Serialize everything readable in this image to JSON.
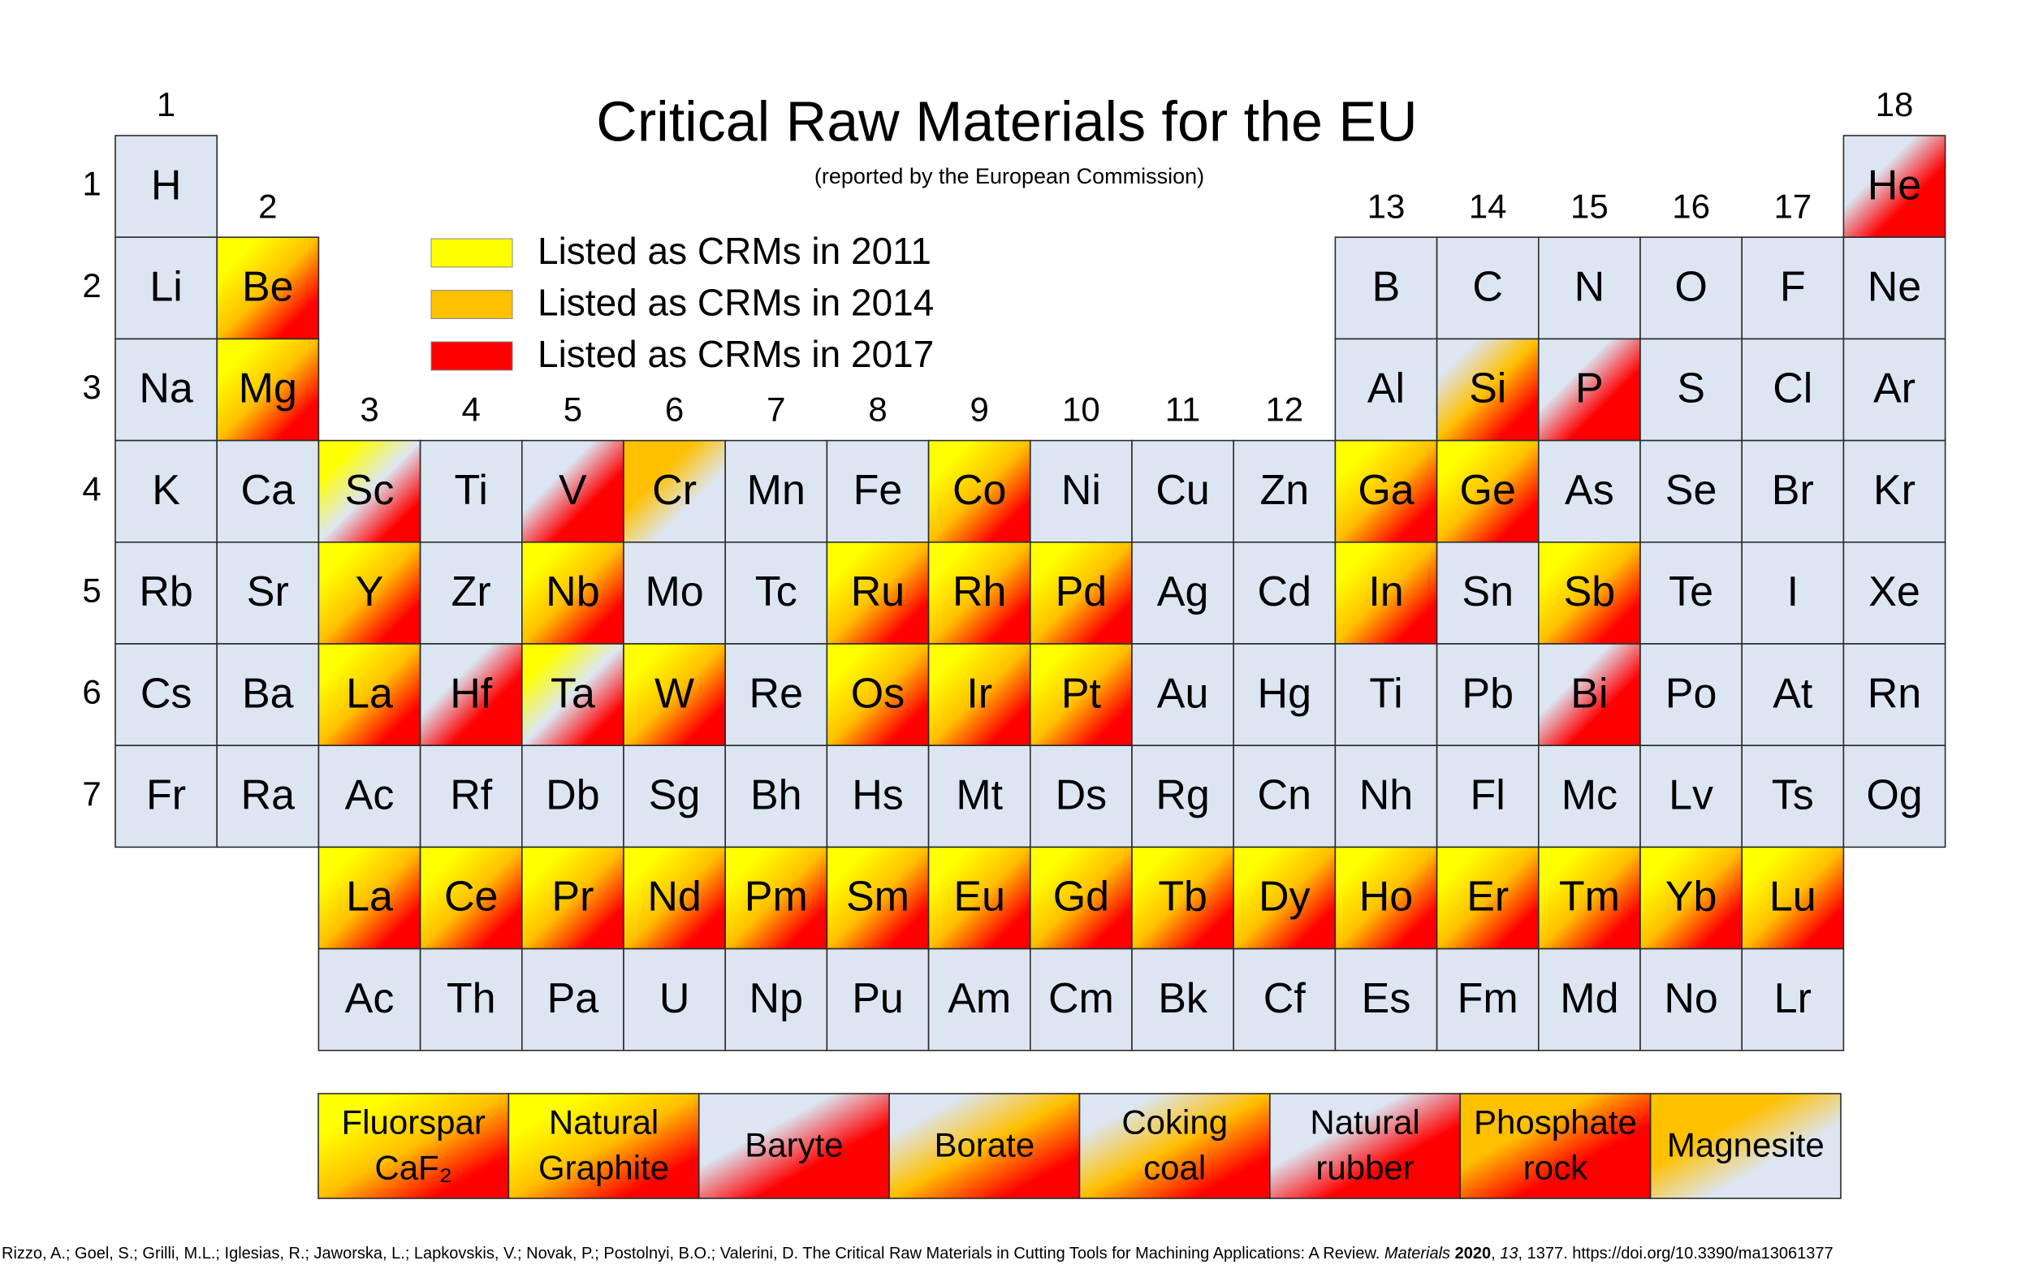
{
  "title": "Critical Raw Materials for the EU",
  "subtitle": "(reported by the European Commission)",
  "legend": [
    {
      "label": "Listed as CRMs in 2011",
      "color": "#ffff00"
    },
    {
      "label": "Listed as CRMs in 2014",
      "color": "#ffc000"
    },
    {
      "label": "Listed as CRMs in 2017",
      "color": "#ff0000"
    }
  ],
  "groups": [
    "1",
    "2",
    "3",
    "4",
    "5",
    "6",
    "7",
    "8",
    "9",
    "10",
    "11",
    "12",
    "13",
    "14",
    "15",
    "16",
    "17",
    "18"
  ],
  "periods": [
    "1",
    "2",
    "3",
    "4",
    "5",
    "6",
    "7"
  ],
  "rows": [
    [
      {
        "symbol": "H",
        "fill": [
          "#dce6f2"
        ]
      },
      null,
      null,
      null,
      null,
      null,
      null,
      null,
      null,
      null,
      null,
      null,
      null,
      null,
      null,
      null,
      null,
      {
        "symbol": "He",
        "fill": [
          "#dce6f2",
          "#ff0000"
        ]
      }
    ],
    [
      {
        "symbol": "Li",
        "fill": [
          "#dce6f2"
        ]
      },
      {
        "symbol": "Be",
        "fill": [
          "#ffff00",
          "#ffc000",
          "#ff0000"
        ]
      },
      null,
      null,
      null,
      null,
      null,
      null,
      null,
      null,
      null,
      null,
      {
        "symbol": "B",
        "fill": [
          "#dce6f2"
        ]
      },
      {
        "symbol": "C",
        "fill": [
          "#dce6f2"
        ]
      },
      {
        "symbol": "N",
        "fill": [
          "#dce6f2"
        ]
      },
      {
        "symbol": "O",
        "fill": [
          "#dce6f2"
        ]
      },
      {
        "symbol": "F",
        "fill": [
          "#dce6f2"
        ]
      },
      {
        "symbol": "Ne",
        "fill": [
          "#dce6f2"
        ]
      }
    ],
    [
      {
        "symbol": "Na",
        "fill": [
          "#dce6f2"
        ]
      },
      {
        "symbol": "Mg",
        "fill": [
          "#ffff00",
          "#ffc000",
          "#ff0000"
        ]
      },
      null,
      null,
      null,
      null,
      null,
      null,
      null,
      null,
      null,
      null,
      {
        "symbol": "Al",
        "fill": [
          "#dce6f2"
        ]
      },
      {
        "symbol": "Si",
        "fill": [
          "#dce6f2",
          "#ffc000",
          "#ff0000"
        ]
      },
      {
        "symbol": "P",
        "fill": [
          "#dce6f2",
          "#ff0000"
        ]
      },
      {
        "symbol": "S",
        "fill": [
          "#dce6f2"
        ]
      },
      {
        "symbol": "Cl",
        "fill": [
          "#dce6f2"
        ]
      },
      {
        "symbol": "Ar",
        "fill": [
          "#dce6f2"
        ]
      }
    ],
    [
      {
        "symbol": "K",
        "fill": [
          "#dce6f2"
        ]
      },
      {
        "symbol": "Ca",
        "fill": [
          "#dce6f2"
        ]
      },
      {
        "symbol": "Sc",
        "fill": [
          "#ffff00",
          "#dce6f2",
          "#ff0000"
        ]
      },
      {
        "symbol": "Ti",
        "fill": [
          "#dce6f2"
        ]
      },
      {
        "symbol": "V",
        "fill": [
          "#dce6f2",
          "#ff0000"
        ]
      },
      {
        "symbol": "Cr",
        "fill": [
          "#ffc000",
          "#dce6f2"
        ]
      },
      {
        "symbol": "Mn",
        "fill": [
          "#dce6f2"
        ]
      },
      {
        "symbol": "Fe",
        "fill": [
          "#dce6f2"
        ]
      },
      {
        "symbol": "Co",
        "fill": [
          "#ffff00",
          "#ffc000",
          "#ff0000"
        ]
      },
      {
        "symbol": "Ni",
        "fill": [
          "#dce6f2"
        ]
      },
      {
        "symbol": "Cu",
        "fill": [
          "#dce6f2"
        ]
      },
      {
        "symbol": "Zn",
        "fill": [
          "#dce6f2"
        ]
      },
      {
        "symbol": "Ga",
        "fill": [
          "#ffff00",
          "#ffc000",
          "#ff0000"
        ]
      },
      {
        "symbol": "Ge",
        "fill": [
          "#ffff00",
          "#ffc000",
          "#ff0000"
        ]
      },
      {
        "symbol": "As",
        "fill": [
          "#dce6f2"
        ]
      },
      {
        "symbol": "Se",
        "fill": [
          "#dce6f2"
        ]
      },
      {
        "symbol": "Br",
        "fill": [
          "#dce6f2"
        ]
      },
      {
        "symbol": "Kr",
        "fill": [
          "#dce6f2"
        ]
      }
    ],
    [
      {
        "symbol": "Rb",
        "fill": [
          "#dce6f2"
        ]
      },
      {
        "symbol": "Sr",
        "fill": [
          "#dce6f2"
        ]
      },
      {
        "symbol": "Y",
        "fill": [
          "#ffff00",
          "#ffc000",
          "#ff0000"
        ]
      },
      {
        "symbol": "Zr",
        "fill": [
          "#dce6f2"
        ]
      },
      {
        "symbol": "Nb",
        "fill": [
          "#ffff00",
          "#ffc000",
          "#ff0000"
        ]
      },
      {
        "symbol": "Mo",
        "fill": [
          "#dce6f2"
        ]
      },
      {
        "symbol": "Tc",
        "fill": [
          "#dce6f2"
        ]
      },
      {
        "symbol": "Ru",
        "fill": [
          "#ffff00",
          "#ffc000",
          "#ff0000"
        ]
      },
      {
        "symbol": "Rh",
        "fill": [
          "#ffff00",
          "#ffc000",
          "#ff0000"
        ]
      },
      {
        "symbol": "Pd",
        "fill": [
          "#ffff00",
          "#ffc000",
          "#ff0000"
        ]
      },
      {
        "symbol": "Ag",
        "fill": [
          "#dce6f2"
        ]
      },
      {
        "symbol": "Cd",
        "fill": [
          "#dce6f2"
        ]
      },
      {
        "symbol": "In",
        "fill": [
          "#ffff00",
          "#ffc000",
          "#ff0000"
        ]
      },
      {
        "symbol": "Sn",
        "fill": [
          "#dce6f2"
        ]
      },
      {
        "symbol": "Sb",
        "fill": [
          "#ffff00",
          "#ffc000",
          "#ff0000"
        ]
      },
      {
        "symbol": "Te",
        "fill": [
          "#dce6f2"
        ]
      },
      {
        "symbol": "I",
        "fill": [
          "#dce6f2"
        ]
      },
      {
        "symbol": "Xe",
        "fill": [
          "#dce6f2"
        ]
      }
    ],
    [
      {
        "symbol": "Cs",
        "fill": [
          "#dce6f2"
        ]
      },
      {
        "symbol": "Ba",
        "fill": [
          "#dce6f2"
        ]
      },
      {
        "symbol": "La",
        "fill": [
          "#ffff00",
          "#ffc000",
          "#ff0000"
        ]
      },
      {
        "symbol": "Hf",
        "fill": [
          "#dce6f2",
          "#ff0000"
        ]
      },
      {
        "symbol": "Ta",
        "fill": [
          "#ffff00",
          "#dce6f2",
          "#ff0000"
        ]
      },
      {
        "symbol": "W",
        "fill": [
          "#ffff00",
          "#ffc000",
          "#ff0000"
        ]
      },
      {
        "symbol": "Re",
        "fill": [
          "#dce6f2"
        ]
      },
      {
        "symbol": "Os",
        "fill": [
          "#ffff00",
          "#ffc000",
          "#ff0000"
        ]
      },
      {
        "symbol": "Ir",
        "fill": [
          "#ffff00",
          "#ffc000",
          "#ff0000"
        ]
      },
      {
        "symbol": "Pt",
        "fill": [
          "#ffff00",
          "#ffc000",
          "#ff0000"
        ]
      },
      {
        "symbol": "Au",
        "fill": [
          "#dce6f2"
        ]
      },
      {
        "symbol": "Hg",
        "fill": [
          "#dce6f2"
        ]
      },
      {
        "symbol": "Ti",
        "fill": [
          "#dce6f2"
        ]
      },
      {
        "symbol": "Pb",
        "fill": [
          "#dce6f2"
        ]
      },
      {
        "symbol": "Bi",
        "fill": [
          "#dce6f2",
          "#ff0000"
        ]
      },
      {
        "symbol": "Po",
        "fill": [
          "#dce6f2"
        ]
      },
      {
        "symbol": "At",
        "fill": [
          "#dce6f2"
        ]
      },
      {
        "symbol": "Rn",
        "fill": [
          "#dce6f2"
        ]
      }
    ],
    [
      {
        "symbol": "Fr",
        "fill": [
          "#dce6f2"
        ]
      },
      {
        "symbol": "Ra",
        "fill": [
          "#dce6f2"
        ]
      },
      {
        "symbol": "Ac",
        "fill": [
          "#dce6f2"
        ]
      },
      {
        "symbol": "Rf",
        "fill": [
          "#dce6f2"
        ]
      },
      {
        "symbol": "Db",
        "fill": [
          "#dce6f2"
        ]
      },
      {
        "symbol": "Sg",
        "fill": [
          "#dce6f2"
        ]
      },
      {
        "symbol": "Bh",
        "fill": [
          "#dce6f2"
        ]
      },
      {
        "symbol": "Hs",
        "fill": [
          "#dce6f2"
        ]
      },
      {
        "symbol": "Mt",
        "fill": [
          "#dce6f2"
        ]
      },
      {
        "symbol": "Ds",
        "fill": [
          "#dce6f2"
        ]
      },
      {
        "symbol": "Rg",
        "fill": [
          "#dce6f2"
        ]
      },
      {
        "symbol": "Cn",
        "fill": [
          "#dce6f2"
        ]
      },
      {
        "symbol": "Nh",
        "fill": [
          "#dce6f2"
        ]
      },
      {
        "symbol": "Fl",
        "fill": [
          "#dce6f2"
        ]
      },
      {
        "symbol": "Mc",
        "fill": [
          "#dce6f2"
        ]
      },
      {
        "symbol": "Lv",
        "fill": [
          "#dce6f2"
        ]
      },
      {
        "symbol": "Ts",
        "fill": [
          "#dce6f2"
        ]
      },
      {
        "symbol": "Og",
        "fill": [
          "#dce6f2"
        ]
      }
    ],
    [
      {
        "symbol": "La",
        "fill": [
          "#ffff00",
          "#ffc000",
          "#ff0000"
        ]
      },
      {
        "symbol": "Ce",
        "fill": [
          "#ffff00",
          "#ffc000",
          "#ff0000"
        ]
      },
      {
        "symbol": "Pr",
        "fill": [
          "#ffff00",
          "#ffc000",
          "#ff0000"
        ]
      },
      {
        "symbol": "Nd",
        "fill": [
          "#ffff00",
          "#ffc000",
          "#ff0000"
        ]
      },
      {
        "symbol": "Pm",
        "fill": [
          "#ffff00",
          "#ffc000",
          "#ff0000"
        ]
      },
      {
        "symbol": "Sm",
        "fill": [
          "#ffff00",
          "#ffc000",
          "#ff0000"
        ]
      },
      {
        "symbol": "Eu",
        "fill": [
          "#ffff00",
          "#ffc000",
          "#ff0000"
        ]
      },
      {
        "symbol": "Gd",
        "fill": [
          "#ffff00",
          "#ffc000",
          "#ff0000"
        ]
      },
      {
        "symbol": "Tb",
        "fill": [
          "#ffff00",
          "#ffc000",
          "#ff0000"
        ]
      },
      {
        "symbol": "Dy",
        "fill": [
          "#ffff00",
          "#ffc000",
          "#ff0000"
        ]
      },
      {
        "symbol": "Ho",
        "fill": [
          "#ffff00",
          "#ffc000",
          "#ff0000"
        ]
      },
      {
        "symbol": "Er",
        "fill": [
          "#ffff00",
          "#ffc000",
          "#ff0000"
        ]
      },
      {
        "symbol": "Tm",
        "fill": [
          "#ffff00",
          "#ffc000",
          "#ff0000"
        ]
      },
      {
        "symbol": "Yb",
        "fill": [
          "#ffff00",
          "#ffc000",
          "#ff0000"
        ]
      },
      {
        "symbol": "Lu",
        "fill": [
          "#ffff00",
          "#ffc000",
          "#ff0000"
        ]
      }
    ],
    [
      {
        "symbol": "Ac",
        "fill": [
          "#dce6f2"
        ]
      },
      {
        "symbol": "Th",
        "fill": [
          "#dce6f2"
        ]
      },
      {
        "symbol": "Pa",
        "fill": [
          "#dce6f2"
        ]
      },
      {
        "symbol": "U",
        "fill": [
          "#dce6f2"
        ]
      },
      {
        "symbol": "Np",
        "fill": [
          "#dce6f2"
        ]
      },
      {
        "symbol": "Pu",
        "fill": [
          "#dce6f2"
        ]
      },
      {
        "symbol": "Am",
        "fill": [
          "#dce6f2"
        ]
      },
      {
        "symbol": "Cm",
        "fill": [
          "#dce6f2"
        ]
      },
      {
        "symbol": "Bk",
        "fill": [
          "#dce6f2"
        ]
      },
      {
        "symbol": "Cf",
        "fill": [
          "#dce6f2"
        ]
      },
      {
        "symbol": "Es",
        "fill": [
          "#dce6f2"
        ]
      },
      {
        "symbol": "Fm",
        "fill": [
          "#dce6f2"
        ]
      },
      {
        "symbol": "Md",
        "fill": [
          "#dce6f2"
        ]
      },
      {
        "symbol": "No",
        "fill": [
          "#dce6f2"
        ]
      },
      {
        "symbol": "Lr",
        "fill": [
          "#dce6f2"
        ]
      }
    ]
  ],
  "materials": [
    {
      "lines": [
        "Fluorspar",
        "CaF₂"
      ],
      "fill": [
        "#ffff00",
        "#ffc000",
        "#ff0000"
      ]
    },
    {
      "lines": [
        "Natural",
        "Graphite"
      ],
      "fill": [
        "#ffff00",
        "#ffc000",
        "#ff0000"
      ]
    },
    {
      "lines": [
        "Baryte"
      ],
      "fill": [
        "#dce6f2",
        "#ff0000"
      ]
    },
    {
      "lines": [
        "Borate"
      ],
      "fill": [
        "#dce6f2",
        "#ffc000",
        "#ff0000"
      ]
    },
    {
      "lines": [
        "Coking",
        "coal"
      ],
      "fill": [
        "#dce6f2",
        "#ffc000",
        "#ff0000"
      ]
    },
    {
      "lines": [
        "Natural",
        "rubber"
      ],
      "fill": [
        "#dce6f2",
        "#ff0000"
      ]
    },
    {
      "lines": [
        "Phosphate",
        "rock"
      ],
      "fill": [
        "#ffc000",
        "#ff0000"
      ]
    },
    {
      "lines": [
        "Magnesite"
      ],
      "fill": [
        "#ffc000",
        "#dce6f2"
      ]
    }
  ],
  "citation": [
    {
      "text": "Rizzo, A.; Goel, S.; Grilli, M.L.; Iglesias, R.; Jaworska, L.; Lapkovskis, V.; Novak, P.; Postolnyi, B.O.; Valerini, D. The Critical Raw Materials in Cutting Tools for Machining Applications: A Review. ",
      "style": "normal"
    },
    {
      "text": "Materials",
      "style": "italic"
    },
    {
      "text": " 2020",
      "style": "bold"
    },
    {
      "text": ", ",
      "style": "normal"
    },
    {
      "text": "13",
      "style": "italic"
    },
    {
      "text": ", 1377. https://doi.org/10.3390/ma13061377",
      "style": "normal"
    }
  ]
}
